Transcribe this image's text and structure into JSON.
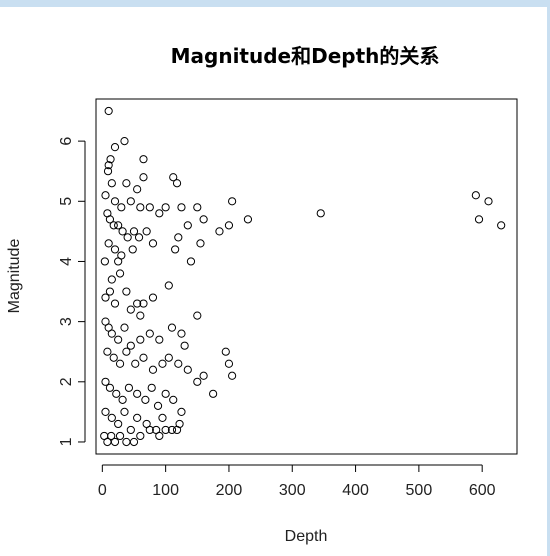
{
  "chart_data": {
    "type": "scatter",
    "title": "Magnitude和Depth的关系",
    "xlabel": "Depth",
    "ylabel": "Magnitude",
    "xlim": [
      -10,
      655
    ],
    "ylim": [
      0.8,
      6.7
    ],
    "xticks": [
      0,
      100,
      200,
      300,
      400,
      500,
      600
    ],
    "xtick_labels": [
      "0",
      "100",
      "200",
      "300",
      "400",
      "500",
      "600"
    ],
    "yticks": [
      1,
      2,
      3,
      4,
      5,
      6
    ],
    "ytick_labels": [
      "1",
      "2",
      "3",
      "4",
      "5",
      "6"
    ],
    "grid": false,
    "legend": "none",
    "marker": "open-circle",
    "series": [
      {
        "points": [
          [
            10,
            6.5
          ],
          [
            35,
            6.0
          ],
          [
            20,
            5.9
          ],
          [
            65,
            5.7
          ],
          [
            13,
            5.7
          ],
          [
            10,
            5.6
          ],
          [
            9,
            5.5
          ],
          [
            15,
            5.3
          ],
          [
            38,
            5.3
          ],
          [
            65,
            5.4
          ],
          [
            112,
            5.4
          ],
          [
            118,
            5.3
          ],
          [
            55,
            5.2
          ],
          [
            5,
            5.1
          ],
          [
            20,
            5.0
          ],
          [
            30,
            4.9
          ],
          [
            45,
            5.0
          ],
          [
            60,
            4.9
          ],
          [
            75,
            4.9
          ],
          [
            90,
            4.8
          ],
          [
            100,
            4.9
          ],
          [
            125,
            4.9
          ],
          [
            150,
            4.9
          ],
          [
            160,
            4.7
          ],
          [
            205,
            5.0
          ],
          [
            590,
            5.1
          ],
          [
            610,
            5.0
          ],
          [
            8,
            4.8
          ],
          [
            12,
            4.7
          ],
          [
            18,
            4.6
          ],
          [
            25,
            4.6
          ],
          [
            32,
            4.5
          ],
          [
            40,
            4.4
          ],
          [
            50,
            4.5
          ],
          [
            58,
            4.4
          ],
          [
            70,
            4.5
          ],
          [
            80,
            4.3
          ],
          [
            120,
            4.4
          ],
          [
            135,
            4.6
          ],
          [
            155,
            4.3
          ],
          [
            185,
            4.5
          ],
          [
            200,
            4.6
          ],
          [
            230,
            4.7
          ],
          [
            345,
            4.8
          ],
          [
            595,
            4.7
          ],
          [
            630,
            4.6
          ],
          [
            10,
            4.3
          ],
          [
            20,
            4.2
          ],
          [
            30,
            4.1
          ],
          [
            48,
            4.2
          ],
          [
            115,
            4.2
          ],
          [
            140,
            4.0
          ],
          [
            4,
            4.0
          ],
          [
            25,
            4.0
          ],
          [
            15,
            3.7
          ],
          [
            28,
            3.8
          ],
          [
            38,
            3.5
          ],
          [
            55,
            3.3
          ],
          [
            65,
            3.3
          ],
          [
            80,
            3.4
          ],
          [
            105,
            3.6
          ],
          [
            5,
            3.4
          ],
          [
            12,
            3.5
          ],
          [
            20,
            3.3
          ],
          [
            45,
            3.2
          ],
          [
            60,
            3.1
          ],
          [
            150,
            3.1
          ],
          [
            5,
            3.0
          ],
          [
            10,
            2.9
          ],
          [
            15,
            2.8
          ],
          [
            25,
            2.7
          ],
          [
            35,
            2.9
          ],
          [
            45,
            2.6
          ],
          [
            60,
            2.7
          ],
          [
            75,
            2.8
          ],
          [
            90,
            2.7
          ],
          [
            110,
            2.9
          ],
          [
            125,
            2.8
          ],
          [
            130,
            2.6
          ],
          [
            8,
            2.5
          ],
          [
            18,
            2.4
          ],
          [
            28,
            2.3
          ],
          [
            38,
            2.5
          ],
          [
            52,
            2.3
          ],
          [
            65,
            2.4
          ],
          [
            80,
            2.2
          ],
          [
            95,
            2.3
          ],
          [
            105,
            2.4
          ],
          [
            120,
            2.3
          ],
          [
            135,
            2.2
          ],
          [
            150,
            2.0
          ],
          [
            160,
            2.1
          ],
          [
            195,
            2.5
          ],
          [
            200,
            2.3
          ],
          [
            205,
            2.1
          ],
          [
            175,
            1.8
          ],
          [
            5,
            2.0
          ],
          [
            12,
            1.9
          ],
          [
            22,
            1.8
          ],
          [
            32,
            1.7
          ],
          [
            42,
            1.9
          ],
          [
            55,
            1.8
          ],
          [
            68,
            1.7
          ],
          [
            78,
            1.9
          ],
          [
            88,
            1.6
          ],
          [
            100,
            1.8
          ],
          [
            112,
            1.7
          ],
          [
            125,
            1.5
          ],
          [
            5,
            1.5
          ],
          [
            15,
            1.4
          ],
          [
            25,
            1.3
          ],
          [
            35,
            1.5
          ],
          [
            45,
            1.2
          ],
          [
            55,
            1.4
          ],
          [
            70,
            1.3
          ],
          [
            85,
            1.2
          ],
          [
            95,
            1.4
          ],
          [
            110,
            1.2
          ],
          [
            122,
            1.3
          ],
          [
            3,
            1.1
          ],
          [
            8,
            1.0
          ],
          [
            14,
            1.1
          ],
          [
            20,
            1.0
          ],
          [
            28,
            1.1
          ],
          [
            38,
            1.0
          ],
          [
            50,
            1.0
          ],
          [
            60,
            1.1
          ],
          [
            75,
            1.2
          ],
          [
            90,
            1.1
          ],
          [
            100,
            1.2
          ],
          [
            118,
            1.2
          ]
        ]
      }
    ]
  }
}
